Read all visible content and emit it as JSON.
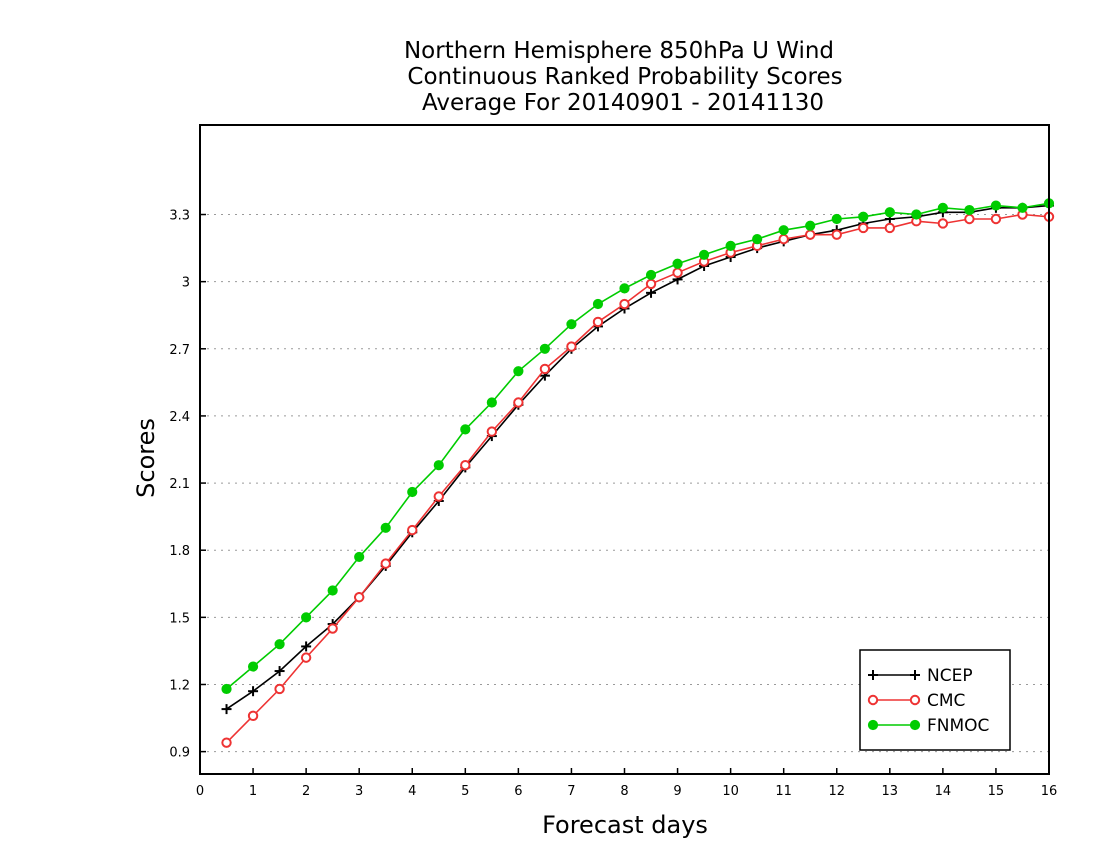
{
  "chart_data": {
    "type": "line",
    "title_lines": [
      "Northern Hemisphere 850hPa U Wind",
      "Continuous Ranked Probability Scores",
      "Average For 20140901 - 20141130"
    ],
    "xlabel": "Forecast days",
    "ylabel": "Scores",
    "xlim": [
      0,
      16
    ],
    "ylim": [
      0.8,
      3.7
    ],
    "xticks": [
      0,
      1,
      2,
      3,
      4,
      5,
      6,
      7,
      8,
      9,
      10,
      11,
      12,
      13,
      14,
      15,
      16
    ],
    "xtick_labels": [
      "0",
      "1",
      "2",
      "3",
      "4",
      "5",
      "6",
      "7",
      "8",
      "9",
      "10",
      "11",
      "12",
      "13",
      "14",
      "15",
      "16"
    ],
    "yticks": [
      0.9,
      1.2,
      1.5,
      1.8,
      2.1,
      2.4,
      2.7,
      3.0,
      3.3
    ],
    "ytick_labels": [
      "0.9",
      "1.2",
      "1.5",
      "1.8",
      "2.1",
      "2.4",
      "2.7",
      "3",
      "3.3"
    ],
    "grid": "horizontal dotted",
    "legend_position": "bottom-right",
    "x": [
      0.5,
      1.0,
      1.5,
      2.0,
      2.5,
      3.0,
      3.5,
      4.0,
      4.5,
      5.0,
      5.5,
      6.0,
      6.5,
      7.0,
      7.5,
      8.0,
      8.5,
      9.0,
      9.5,
      10.0,
      10.5,
      11.0,
      11.5,
      12.0,
      12.5,
      13.0,
      13.5,
      14.0,
      14.5,
      15.0,
      15.5,
      16.0
    ],
    "series": [
      {
        "name": "NCEP",
        "color": "#000000",
        "marker": "plus",
        "values": [
          1.09,
          1.17,
          1.26,
          1.37,
          1.47,
          1.59,
          1.73,
          1.88,
          2.02,
          2.17,
          2.31,
          2.45,
          2.58,
          2.7,
          2.8,
          2.88,
          2.95,
          3.01,
          3.07,
          3.11,
          3.15,
          3.18,
          3.21,
          3.23,
          3.26,
          3.28,
          3.29,
          3.31,
          3.31,
          3.33,
          3.33,
          3.34
        ]
      },
      {
        "name": "CMC",
        "color": "#ee3333",
        "marker": "open-circle",
        "values": [
          0.94,
          1.06,
          1.18,
          1.32,
          1.45,
          1.59,
          1.74,
          1.89,
          2.04,
          2.18,
          2.33,
          2.46,
          2.61,
          2.71,
          2.82,
          2.9,
          2.99,
          3.04,
          3.09,
          3.13,
          3.16,
          3.19,
          3.21,
          3.21,
          3.24,
          3.24,
          3.27,
          3.26,
          3.28,
          3.28,
          3.3,
          3.29
        ]
      },
      {
        "name": "FNMOC",
        "color": "#00cc00",
        "marker": "filled-circle",
        "values": [
          1.18,
          1.28,
          1.38,
          1.5,
          1.62,
          1.77,
          1.9,
          2.06,
          2.18,
          2.34,
          2.46,
          2.6,
          2.7,
          2.81,
          2.9,
          2.97,
          3.03,
          3.08,
          3.12,
          3.16,
          3.19,
          3.23,
          3.25,
          3.28,
          3.29,
          3.31,
          3.3,
          3.33,
          3.32,
          3.34,
          3.33,
          3.35
        ]
      }
    ]
  }
}
